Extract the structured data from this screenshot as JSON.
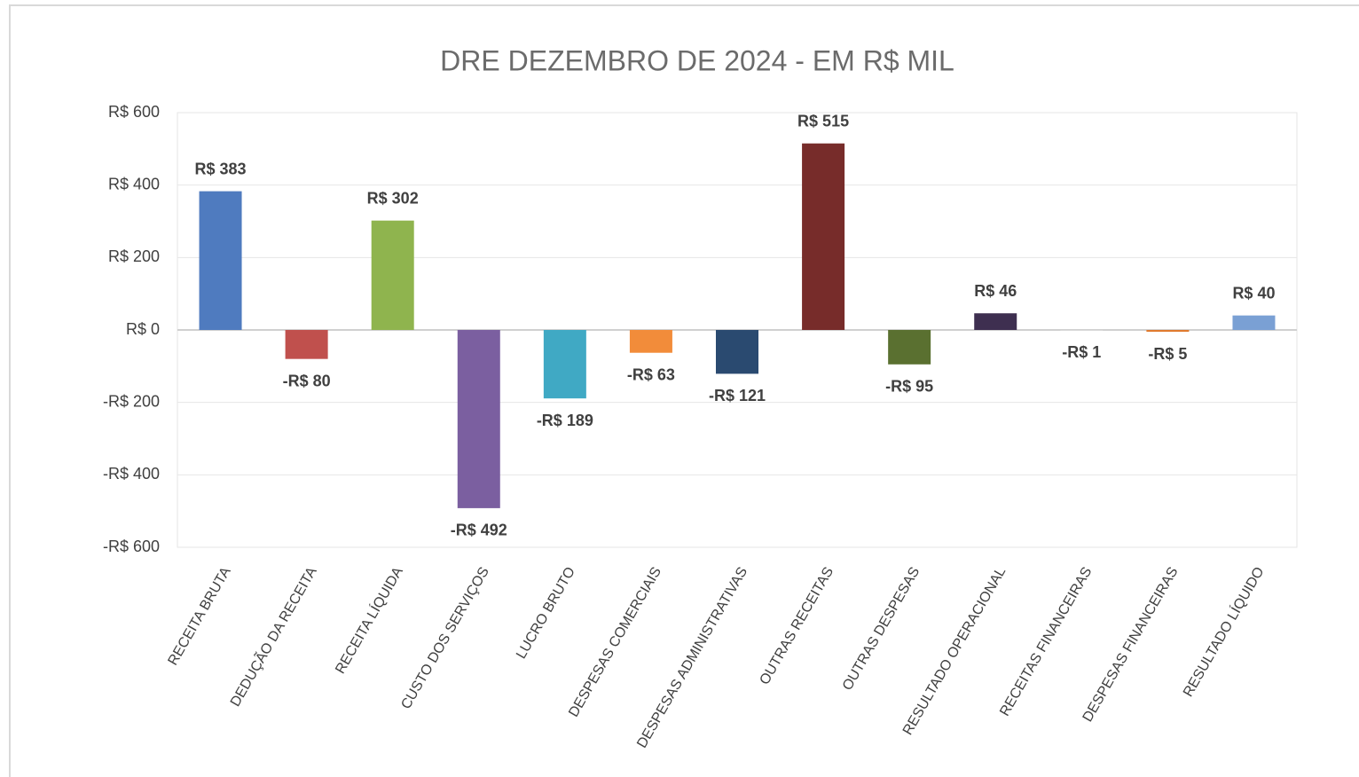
{
  "chart_data": {
    "type": "bar",
    "title": "DRE DEZEMBRO DE 2024 - EM R$ MIL",
    "categories": [
      "RECEITA BRUTA",
      "DEDUÇÃO DA RECEITA",
      "RECEITA LÍQUIDA",
      "CUSTO DOS SERVIÇOS",
      "LUCRO BRUTO",
      "DESPESAS COMERCIAIS",
      "DESPESAS ADMINISTRATIVAS",
      "OUTRAS RECEITAS",
      "OUTRAS DESPESAS",
      "RESULTADO OPERACIONAL",
      "RECEITAS FINANCEIRAS",
      "DESPESAS FINANCEIRAS",
      "RESULTADO LÍQUIDO"
    ],
    "values": [
      383,
      -80,
      302,
      -492,
      -189,
      -63,
      -121,
      515,
      -95,
      46,
      -1,
      -5,
      40
    ],
    "value_labels": [
      "R$ 383",
      "-R$ 80",
      "R$ 302",
      "-R$ 492",
      "-R$ 189",
      "-R$ 63",
      "-R$ 121",
      "R$ 515",
      "-R$ 95",
      "R$ 46",
      "-R$ 1",
      "-R$ 5",
      "R$ 40"
    ],
    "colors": [
      "#4f7bbf",
      "#c0504d",
      "#8fb44e",
      "#7b5fa0",
      "#40a9c4",
      "#f28c3a",
      "#2a4a70",
      "#772c2a",
      "#5a7030",
      "#3e2f50",
      "#d9d9d9",
      "#e07a2e",
      "#7aa0d4"
    ],
    "ylim": [
      -600,
      600
    ],
    "yticks": [
      {
        "value": -600,
        "label": "-R$ 600"
      },
      {
        "value": -400,
        "label": "-R$ 400"
      },
      {
        "value": -200,
        "label": "-R$ 200"
      },
      {
        "value": 0,
        "label": "R$ 0"
      },
      {
        "value": 200,
        "label": "R$ 200"
      },
      {
        "value": 400,
        "label": "R$ 400"
      },
      {
        "value": 600,
        "label": "R$ 600"
      }
    ],
    "grid": true
  }
}
